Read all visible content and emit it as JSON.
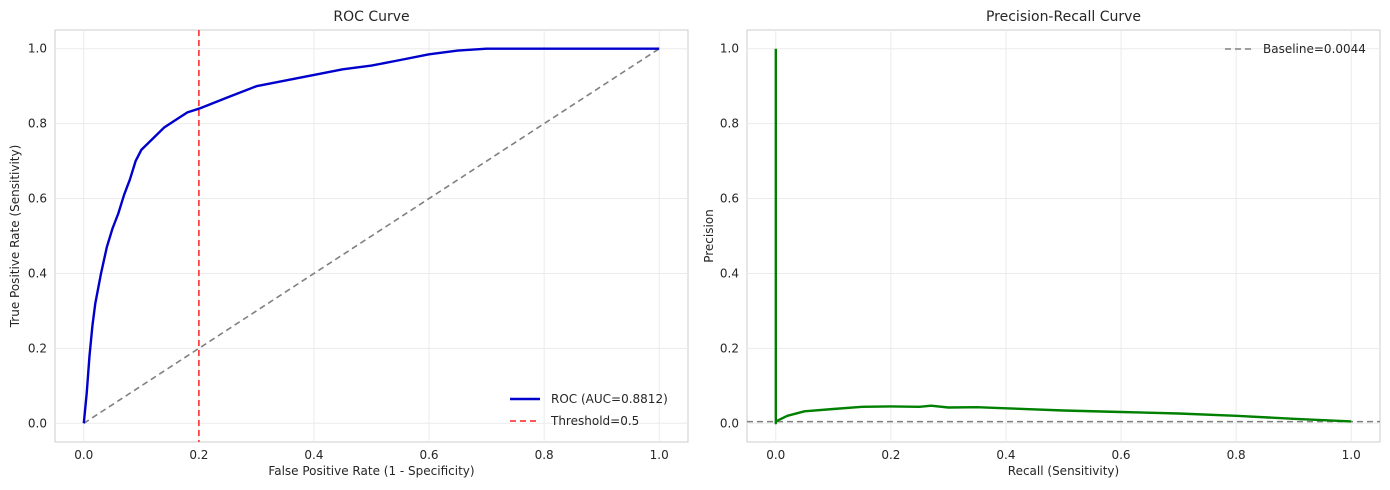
{
  "chart_data": [
    {
      "type": "line",
      "title": "ROC Curve",
      "xlabel": "False Positive Rate (1 - Specificity)",
      "ylabel": "True Positive Rate (Sensitivity)",
      "xlim": [
        -0.05,
        1.05
      ],
      "ylim": [
        -0.05,
        1.05
      ],
      "xticks": [
        "0.0",
        "0.2",
        "0.4",
        "0.6",
        "0.8",
        "1.0"
      ],
      "yticks": [
        "0.0",
        "0.2",
        "0.4",
        "0.6",
        "0.8",
        "1.0"
      ],
      "grid": true,
      "legend_position": "lower-right",
      "series": [
        {
          "name": "ROC (AUC=0.8812)",
          "color": "#0000cd",
          "style": "solid",
          "x": [
            0.0,
            0.005,
            0.01,
            0.015,
            0.02,
            0.03,
            0.04,
            0.05,
            0.06,
            0.07,
            0.08,
            0.09,
            0.1,
            0.12,
            0.14,
            0.16,
            0.18,
            0.2,
            0.25,
            0.3,
            0.35,
            0.4,
            0.45,
            0.5,
            0.55,
            0.6,
            0.65,
            0.7,
            0.8,
            0.9,
            1.0
          ],
          "y": [
            0.0,
            0.08,
            0.18,
            0.26,
            0.32,
            0.4,
            0.47,
            0.52,
            0.56,
            0.61,
            0.65,
            0.7,
            0.73,
            0.76,
            0.79,
            0.81,
            0.83,
            0.84,
            0.87,
            0.9,
            0.915,
            0.93,
            0.945,
            0.955,
            0.97,
            0.985,
            0.995,
            1.0,
            1.0,
            1.0,
            1.0
          ]
        },
        {
          "name": "",
          "color": "#808080",
          "style": "dashed",
          "x": [
            0.0,
            1.0
          ],
          "y": [
            0.0,
            1.0
          ]
        },
        {
          "name": "Threshold=0.5",
          "color": "#ff4040",
          "style": "dashed",
          "vline": 0.2
        }
      ]
    },
    {
      "type": "line",
      "title": "Precision-Recall Curve",
      "xlabel": "Recall (Sensitivity)",
      "ylabel": "Precision",
      "xlim": [
        -0.05,
        1.05
      ],
      "ylim": [
        -0.05,
        1.05
      ],
      "xticks": [
        "0.0",
        "0.2",
        "0.4",
        "0.6",
        "0.8",
        "1.0"
      ],
      "yticks": [
        "0.0",
        "0.2",
        "0.4",
        "0.6",
        "0.8",
        "1.0"
      ],
      "grid": true,
      "legend_position": "upper-right",
      "series": [
        {
          "name": "",
          "color": "#008000",
          "style": "solid",
          "x": [
            0.0,
            0.0,
            0.0,
            0.02,
            0.05,
            0.1,
            0.15,
            0.2,
            0.25,
            0.27,
            0.3,
            0.35,
            0.4,
            0.5,
            0.6,
            0.7,
            0.8,
            0.9,
            1.0
          ],
          "y": [
            1.0,
            0.0,
            0.005,
            0.02,
            0.032,
            0.038,
            0.044,
            0.045,
            0.044,
            0.047,
            0.042,
            0.043,
            0.04,
            0.034,
            0.03,
            0.026,
            0.02,
            0.012,
            0.005
          ]
        },
        {
          "name": "Baseline=0.0044",
          "color": "#808080",
          "style": "dashed",
          "hline": 0.0044
        }
      ]
    }
  ]
}
